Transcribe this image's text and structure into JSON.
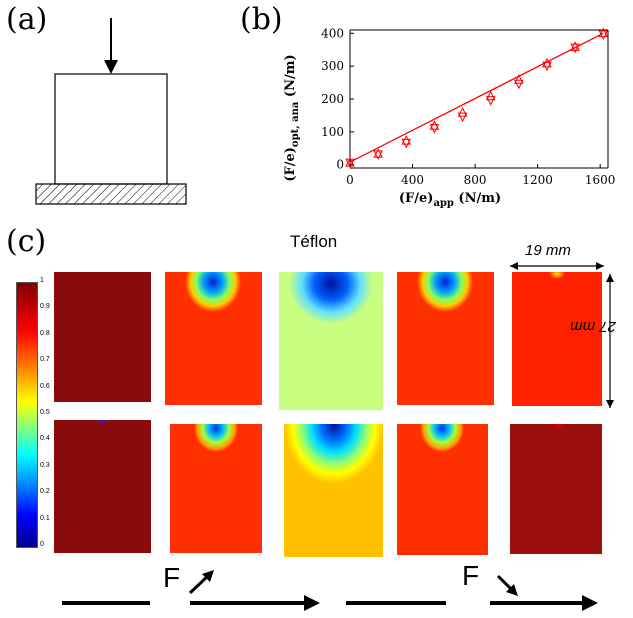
{
  "panels": {
    "a": "(a)",
    "b": "(b)",
    "c": "(c)"
  },
  "panel_c": {
    "material_label": "Téflon",
    "width_dim": "19 mm",
    "height_dim": "27 mm",
    "force_labels": [
      "F",
      "F"
    ],
    "colorbar_ticks": [
      "1",
      "0.9",
      "0.8",
      "0.7",
      "0.6",
      "0.5",
      "0.4",
      "0.3",
      "0.2",
      "0.1",
      "0"
    ]
  },
  "chart_data": {
    "type": "scatter",
    "title": "",
    "xlabel": "(F/e)app (N/m)",
    "ylabel": "(F/e)opt, ana (N/m)",
    "xlim": [
      0,
      1650
    ],
    "ylim": [
      -10,
      410
    ],
    "xticks": [
      0,
      400,
      800,
      1200,
      1600
    ],
    "yticks": [
      0,
      100,
      200,
      300,
      400
    ],
    "series": [
      {
        "marker": "triangle-down",
        "x": [
          0,
          180,
          360,
          540,
          720,
          900,
          1080,
          1260,
          1440,
          1620
        ],
        "y": [
          5,
          30,
          65,
          110,
          145,
          195,
          245,
          300,
          355,
          395
        ]
      },
      {
        "marker": "triangle-up",
        "x": [
          0,
          180,
          360,
          540,
          720,
          900,
          1080,
          1260,
          1440,
          1620
        ],
        "y": [
          8,
          35,
          75,
          120,
          160,
          210,
          260,
          310,
          360,
          402
        ]
      }
    ],
    "fit_line": {
      "x": [
        0,
        1620
      ],
      "y": [
        8,
        400
      ]
    },
    "grid": false,
    "color": "#ff0000"
  }
}
